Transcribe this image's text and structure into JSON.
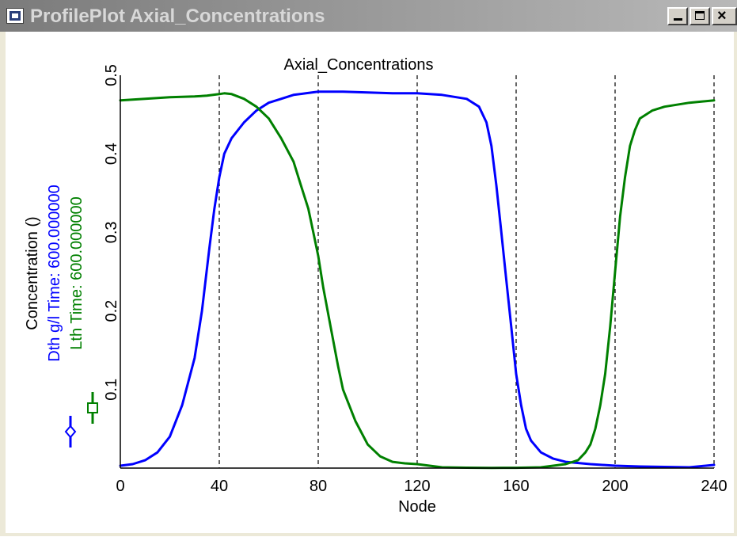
{
  "window": {
    "title": "ProfilePlot Axial_Concentrations",
    "minimize_icon": "minimize-icon",
    "maximize_icon": "maximize-icon",
    "close_icon": "close-icon",
    "app_icon": "app-icon"
  },
  "chart_data": {
    "type": "line",
    "title": "Axial_Concentrations",
    "xlabel": "Node",
    "ylabel": "Concentration ()",
    "xlim": [
      0,
      240
    ],
    "ylim": [
      0,
      0.5
    ],
    "x_ticks": [
      "0",
      "40",
      "80",
      "120",
      "160",
      "200",
      "240"
    ],
    "y_ticks": [
      "0.1",
      "0.2",
      "0.3",
      "0.4",
      "0.5"
    ],
    "vertical_gridlines_at": [
      40,
      80,
      120,
      160,
      200,
      240
    ],
    "grid_style": "dashed vertical",
    "legend_placement": "left, rotated",
    "series": [
      {
        "name": "Dth g/l Time: 600.000000",
        "color": "#0000ff",
        "marker": "diamond",
        "x": [
          0,
          5,
          10,
          15,
          20,
          25,
          30,
          33,
          36,
          38,
          40,
          42,
          45,
          50,
          55,
          60,
          65,
          70,
          75,
          80,
          90,
          100,
          110,
          120,
          130,
          140,
          145,
          148,
          150,
          152,
          154,
          156,
          158,
          160,
          162,
          164,
          166,
          170,
          175,
          180,
          190,
          200,
          210,
          220,
          230,
          240
        ],
        "y": [
          0.003,
          0.005,
          0.01,
          0.02,
          0.04,
          0.08,
          0.14,
          0.2,
          0.28,
          0.33,
          0.37,
          0.4,
          0.42,
          0.44,
          0.455,
          0.465,
          0.47,
          0.475,
          0.477,
          0.479,
          0.479,
          0.478,
          0.477,
          0.477,
          0.475,
          0.47,
          0.46,
          0.44,
          0.41,
          0.36,
          0.3,
          0.24,
          0.18,
          0.12,
          0.08,
          0.05,
          0.035,
          0.02,
          0.012,
          0.008,
          0.005,
          0.003,
          0.002,
          0.0015,
          0.001,
          0.004
        ]
      },
      {
        "name": "Lth  Time: 600.000000",
        "color": "#008000",
        "marker": "square",
        "x": [
          0,
          10,
          20,
          30,
          35,
          40,
          42,
          45,
          50,
          55,
          60,
          65,
          70,
          73,
          76,
          78,
          80,
          82,
          85,
          88,
          90,
          95,
          100,
          105,
          110,
          115,
          120,
          125,
          130,
          140,
          150,
          160,
          170,
          180,
          185,
          188,
          190,
          192,
          194,
          196,
          198,
          200,
          202,
          204,
          206,
          208,
          210,
          215,
          220,
          230,
          240
        ],
        "y": [
          0.468,
          0.47,
          0.472,
          0.473,
          0.474,
          0.476,
          0.477,
          0.476,
          0.47,
          0.46,
          0.445,
          0.42,
          0.39,
          0.36,
          0.33,
          0.3,
          0.27,
          0.23,
          0.18,
          0.13,
          0.1,
          0.06,
          0.03,
          0.015,
          0.008,
          0.006,
          0.005,
          0.003,
          0.001,
          0.0005,
          0.0003,
          0.0004,
          0.001,
          0.005,
          0.01,
          0.02,
          0.03,
          0.05,
          0.08,
          0.12,
          0.18,
          0.25,
          0.32,
          0.37,
          0.41,
          0.43,
          0.445,
          0.455,
          0.46,
          0.465,
          0.468
        ]
      }
    ]
  }
}
